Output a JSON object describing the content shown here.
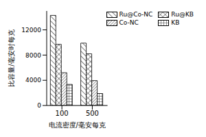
{
  "chart_data": {
    "type": "bar",
    "x_label": "电流密度/毫安每克",
    "y_label": "比容量/毫安时每克",
    "categories": [
      "100",
      "500"
    ],
    "series": [
      {
        "name": "Ru@Co-NC",
        "color": "#000000",
        "values": [
          14300,
          9900
        ]
      },
      {
        "name": "Ru@KB",
        "color": "#000000",
        "values": [
          9700,
          8200
        ]
      },
      {
        "name": "Co-NC",
        "color": "#000000",
        "values": [
          5200,
          3950
        ]
      },
      {
        "name": "KB",
        "color": "#000000",
        "values": [
          3350,
          1900
        ]
      }
    ],
    "ylim": [
      0,
      15000
    ],
    "yticks": [
      0,
      4000,
      8000,
      12000
    ],
    "grid": false,
    "legend": "upper right"
  }
}
